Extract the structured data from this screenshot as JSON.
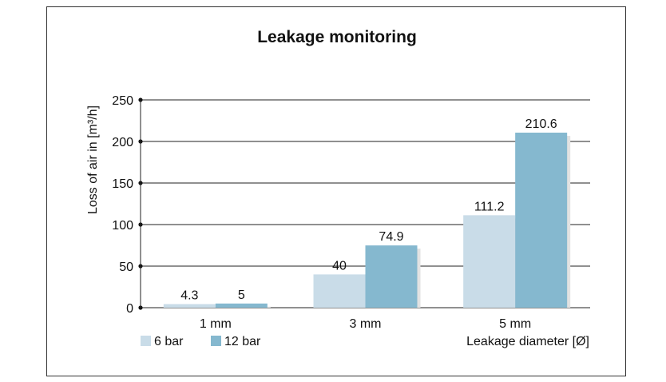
{
  "chart_data": {
    "type": "bar",
    "title": "Leakage monitoring",
    "ylabel": "Loss of air in [m³/h]",
    "xlabel": "Leakage diameter [Ø]",
    "categories": [
      "1 mm",
      "3 mm",
      "5 mm"
    ],
    "series": [
      {
        "name": "6 bar",
        "values": [
          4.3,
          40,
          111.2
        ],
        "color": "#c9dce8"
      },
      {
        "name": "12 bar",
        "values": [
          5,
          74.9,
          210.6
        ],
        "color": "#85b8cf"
      }
    ],
    "data_labels": [
      [
        "4.3",
        "40",
        "111.2"
      ],
      [
        "5",
        "74.9",
        "210.6"
      ]
    ],
    "ylim": [
      0,
      250
    ],
    "yticks": [
      0,
      50,
      100,
      150,
      200,
      250
    ],
    "grid": true,
    "legend_position": "bottom-left",
    "shadow_color": "#e2e2e2"
  }
}
